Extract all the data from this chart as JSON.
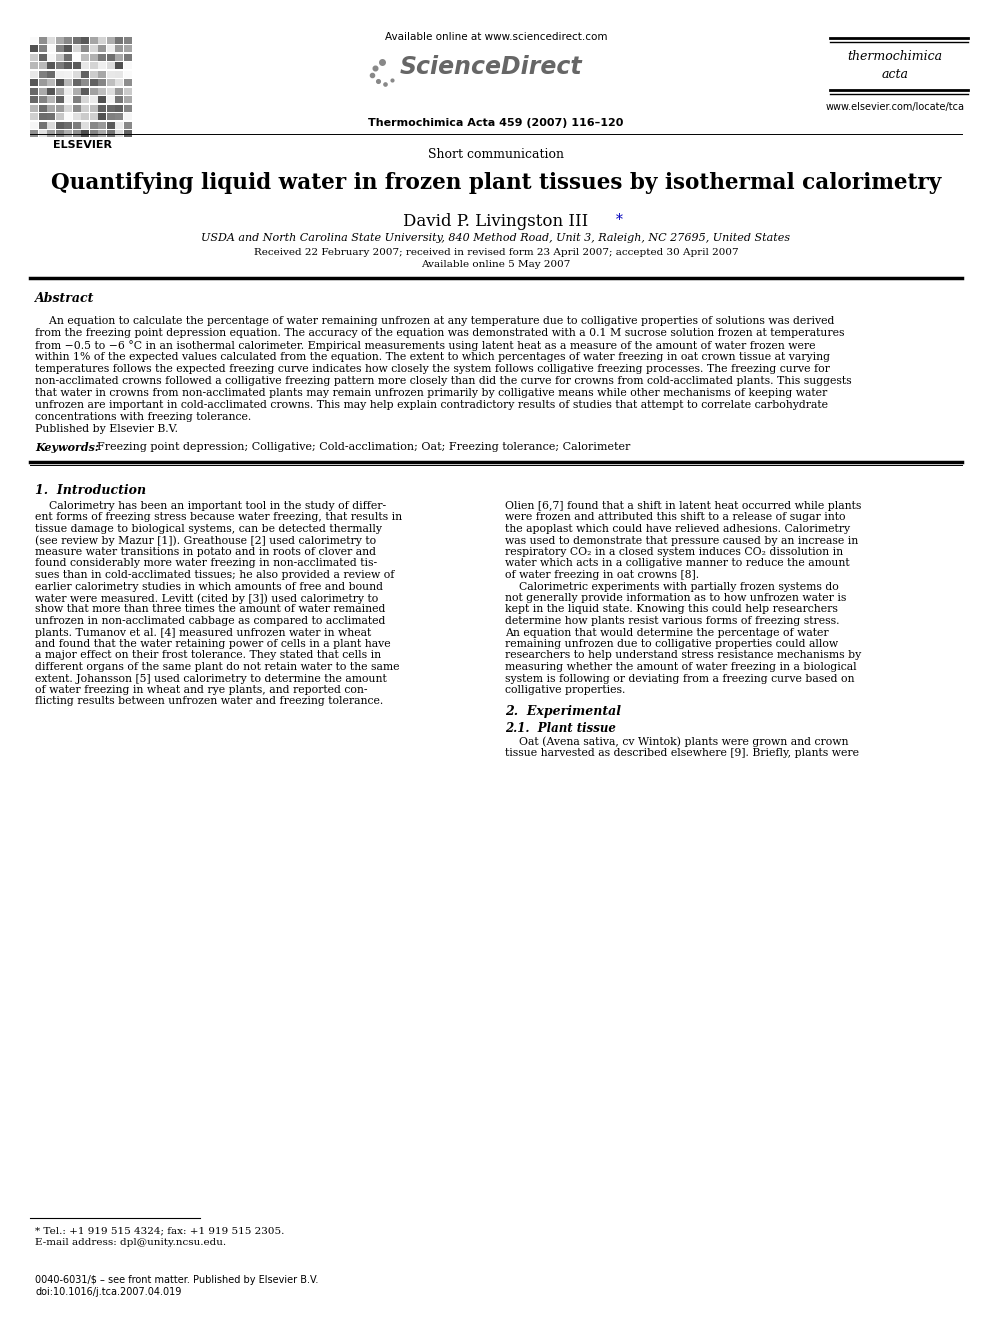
{
  "title": "Quantifying liquid water in frozen plant tissues by isothermal calorimetry",
  "short_comm": "Short communication",
  "author": "David P. Livingston III",
  "author_star": "*",
  "affiliation": "USDA and North Carolina State University, 840 Method Road, Unit 3, Raleigh, NC 27695, United States",
  "received": "Received 22 February 2007; received in revised form 23 April 2007; accepted 30 April 2007",
  "available": "Available online 5 May 2007",
  "journal_header": "Thermochimica Acta 459 (2007) 116–120",
  "sciencedirect_url": "Available online at www.sciencedirect.com",
  "elsevier_label": "ELSEVIER",
  "thermochimica1": "thermochimica",
  "thermochimica2": "acta",
  "elsevier_url": "www.elsevier.com/locate/tca",
  "abstract_title": "Abstract",
  "abstract_lines": [
    "    An equation to calculate the percentage of water remaining unfrozen at any temperature due to colligative properties of solutions was derived",
    "from the freezing point depression equation. The accuracy of the equation was demonstrated with a 0.1 M sucrose solution frozen at temperatures",
    "from −0.5 to −6 °C in an isothermal calorimeter. Empirical measurements using latent heat as a measure of the amount of water frozen were",
    "within 1% of the expected values calculated from the equation. The extent to which percentages of water freezing in oat crown tissue at varying",
    "temperatures follows the expected freezing curve indicates how closely the system follows colligative freezing processes. The freezing curve for",
    "non-acclimated crowns followed a colligative freezing pattern more closely than did the curve for crowns from cold-acclimated plants. This suggests",
    "that water in crowns from non-acclimated plants may remain unfrozen primarily by colligative means while other mechanisms of keeping water",
    "unfrozen are important in cold-acclimated crowns. This may help explain contradictory results of studies that attempt to correlate carbohydrate",
    "concentrations with freezing tolerance.",
    "Published by Elsevier B.V."
  ],
  "keywords_label": "Keywords:",
  "keywords_text": "  Freezing point depression; Colligative; Cold-acclimation; Oat; Freezing tolerance; Calorimeter",
  "section1_title": "1.  Introduction",
  "col1_lines": [
    "    Calorimetry has been an important tool in the study of differ-",
    "ent forms of freezing stress because water freezing, that results in",
    "tissue damage to biological systems, can be detected thermally",
    "(see review by Mazur [1]). Greathouse [2] used calorimetry to",
    "measure water transitions in potato and in roots of clover and",
    "found considerably more water freezing in non-acclimated tis-",
    "sues than in cold-acclimated tissues; he also provided a review of",
    "earlier calorimetry studies in which amounts of free and bound",
    "water were measured. Levitt (cited by [3]) used calorimetry to",
    "show that more than three times the amount of water remained",
    "unfrozen in non-acclimated cabbage as compared to acclimated",
    "plants. Tumanov et al. [4] measured unfrozen water in wheat",
    "and found that the water retaining power of cells in a plant have",
    "a major effect on their frost tolerance. They stated that cells in",
    "different organs of the same plant do not retain water to the same",
    "extent. Johansson [5] used calorimetry to determine the amount",
    "of water freezing in wheat and rye plants, and reported con-",
    "flicting results between unfrozen water and freezing tolerance."
  ],
  "col2_intro_lines": [
    "Olien [6,7] found that a shift in latent heat occurred while plants",
    "were frozen and attributed this shift to a release of sugar into",
    "the apoplast which could have relieved adhesions. Calorimetry",
    "was used to demonstrate that pressure caused by an increase in",
    "respiratory CO₂ in a closed system induces CO₂ dissolution in",
    "water which acts in a colligative manner to reduce the amount",
    "of water freezing in oat crowns [8].",
    "    Calorimetric experiments with partially frozen systems do",
    "not generally provide information as to how unfrozen water is",
    "kept in the liquid state. Knowing this could help researchers",
    "determine how plants resist various forms of freezing stress.",
    "An equation that would determine the percentage of water",
    "remaining unfrozen due to colligative properties could allow",
    "researchers to help understand stress resistance mechanisms by",
    "measuring whether the amount of water freezing in a biological",
    "system is following or deviating from a freezing curve based on",
    "colligative properties."
  ],
  "section2_title": "2.  Experimental",
  "section21_title": "2.1.  Plant tissue",
  "section21_lines": [
    "    Oat (Avena sativa, cv Wintok) plants were grown and crown",
    "tissue harvested as described elsewhere [9]. Briefly, plants were"
  ],
  "footnote_line1": "* Tel.: +1 919 515 4324; fax: +1 919 515 2305.",
  "footnote_line2": "E-mail address: dpl@unity.ncsu.edu.",
  "footer1": "0040-6031/$ – see front matter. Published by Elsevier B.V.",
  "footer2": "doi:10.1016/j.tca.2007.04.019",
  "bg_color": "#ffffff",
  "black": "#000000",
  "blue": "#0000bb",
  "gray_logo": "#888888",
  "gray_sci": "#666666"
}
